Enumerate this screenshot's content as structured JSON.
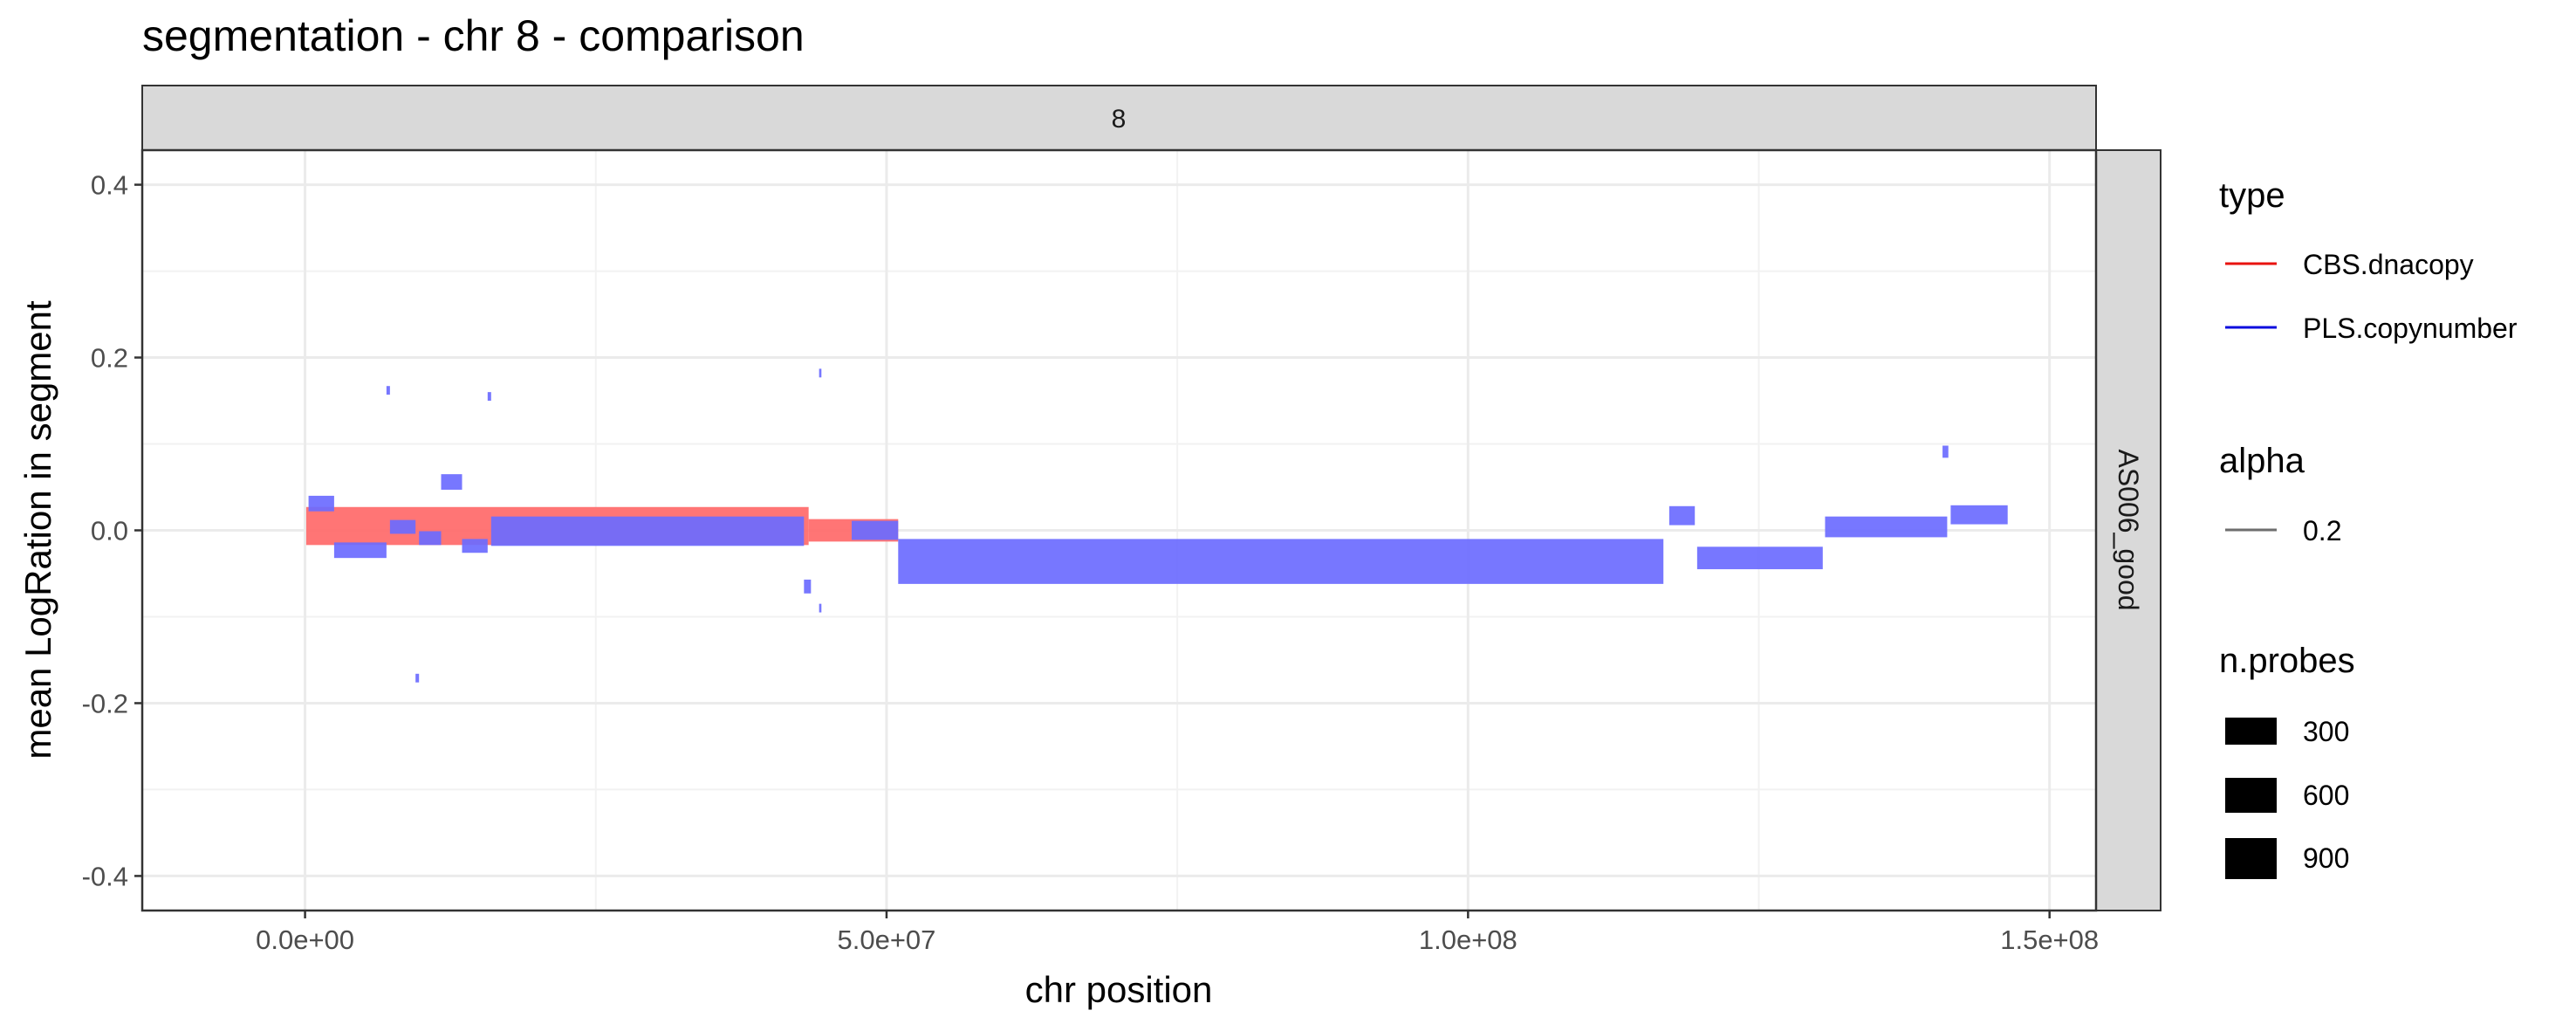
{
  "chart_data": {
    "type": "bar",
    "title": "segmentation - chr 8 - comparison",
    "xlabel": "chr position",
    "ylabel": "mean LogRation in segment",
    "facet_top": "8",
    "facet_right": "AS006_good",
    "xlim": [
      -14000000,
      154000000
    ],
    "ylim": [
      -0.44,
      0.44
    ],
    "x_ticks": [
      {
        "value": 0,
        "label": "0.0e+00"
      },
      {
        "value": 50000000,
        "label": "5.0e+07"
      },
      {
        "value": 100000000,
        "label": "1.0e+08"
      },
      {
        "value": 150000000,
        "label": "1.5e+08"
      }
    ],
    "y_ticks": [
      {
        "value": 0.4,
        "label": "0.4"
      },
      {
        "value": 0.2,
        "label": "0.2"
      },
      {
        "value": 0.0,
        "label": "0.0"
      },
      {
        "value": -0.2,
        "label": "-0.2"
      },
      {
        "value": -0.4,
        "label": "-0.4"
      }
    ],
    "grid": true,
    "legend": {
      "placement": "right",
      "type_title": "type",
      "types": [
        {
          "name": "CBS.dnacopy",
          "color": "#e8130f"
        },
        {
          "name": "PLS.copynumber",
          "color": "#0d0dde"
        }
      ],
      "alpha_title": "alpha",
      "alpha_value": "0.2",
      "size_title": "n.probes",
      "sizes": [
        {
          "label": "300",
          "value": 300
        },
        {
          "label": "600",
          "value": 600
        },
        {
          "label": "900",
          "value": 900
        }
      ]
    },
    "series": [
      {
        "name": "CBS.dnacopy",
        "color": "#ff6e6e",
        "segments": [
          {
            "start": 100000,
            "end": 43300000,
            "value": 0.005,
            "half_height": 0.022
          },
          {
            "start": 43300000,
            "end": 51000000,
            "value": 0.0,
            "half_height": 0.013
          }
        ]
      },
      {
        "name": "PLS.copynumber",
        "color": "#6b6bff",
        "segments": [
          {
            "start": 300000,
            "end": 2500000,
            "value": 0.031,
            "half_height": 0.009
          },
          {
            "start": 2500000,
            "end": 7000000,
            "value": -0.023,
            "half_height": 0.009
          },
          {
            "start": 7000000,
            "end": 7300000,
            "value": 0.162,
            "half_height": 0.005
          },
          {
            "start": 7300000,
            "end": 9500000,
            "value": 0.004,
            "half_height": 0.008
          },
          {
            "start": 9500000,
            "end": 9800000,
            "value": -0.171,
            "half_height": 0.005
          },
          {
            "start": 9800000,
            "end": 11700000,
            "value": -0.009,
            "half_height": 0.008
          },
          {
            "start": 11700000,
            "end": 13500000,
            "value": 0.056,
            "half_height": 0.009
          },
          {
            "start": 13500000,
            "end": 15700000,
            "value": -0.018,
            "half_height": 0.008
          },
          {
            "start": 15700000,
            "end": 16000000,
            "value": 0.155,
            "half_height": 0.005
          },
          {
            "start": 16000000,
            "end": 42900000,
            "value": -0.001,
            "half_height": 0.017
          },
          {
            "start": 42900000,
            "end": 43500000,
            "value": -0.065,
            "half_height": 0.008
          },
          {
            "start": 44200000,
            "end": 44400000,
            "value": -0.09,
            "half_height": 0.005
          },
          {
            "start": 44200000,
            "end": 44400000,
            "value": 0.182,
            "half_height": 0.005
          },
          {
            "start": 47000000,
            "end": 51000000,
            "value": 0.0,
            "half_height": 0.011
          },
          {
            "start": 51000000,
            "end": 116800000,
            "value": -0.036,
            "half_height": 0.026
          },
          {
            "start": 117300000,
            "end": 119500000,
            "value": 0.017,
            "half_height": 0.011
          },
          {
            "start": 119700000,
            "end": 130500000,
            "value": -0.032,
            "half_height": 0.013
          },
          {
            "start": 130700000,
            "end": 141200000,
            "value": 0.004,
            "half_height": 0.012
          },
          {
            "start": 140800000,
            "end": 141300000,
            "value": 0.091,
            "half_height": 0.007
          },
          {
            "start": 141500000,
            "end": 146400000,
            "value": 0.018,
            "half_height": 0.011
          }
        ]
      }
    ]
  }
}
